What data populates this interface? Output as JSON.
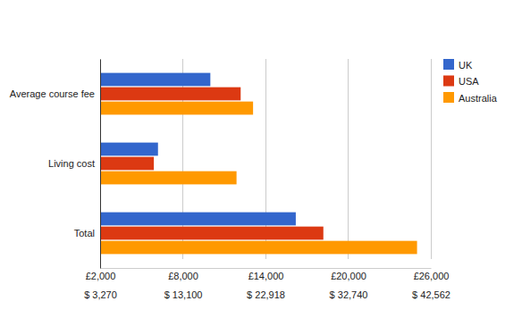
{
  "chart_data": {
    "type": "bar",
    "orientation": "horizontal",
    "categories": [
      "Average course fee",
      "Living cost",
      "Total"
    ],
    "series": [
      {
        "name": "UK",
        "color": "#3366cc",
        "values": [
          10000,
          6200,
          16200
        ]
      },
      {
        "name": "USA",
        "color": "#dc3912",
        "values": [
          12200,
          5900,
          18200
        ]
      },
      {
        "name": "Australia",
        "color": "#ff9900",
        "values": [
          13100,
          11900,
          25000
        ]
      }
    ],
    "xlim": [
      2000,
      26000
    ],
    "xticks": [
      {
        "value": 2000,
        "label": "£2,000"
      },
      {
        "value": 8000,
        "label": "£8,000"
      },
      {
        "value": 14000,
        "label": "£14,000"
      },
      {
        "value": 20000,
        "label": "£20,000"
      },
      {
        "value": 26000,
        "label": "£26,000"
      }
    ],
    "x2lim": [
      3270,
      42562
    ],
    "x2ticks": [
      {
        "value": 3270,
        "label": "$ 3,270"
      },
      {
        "value": 13100,
        "label": "$ 13,100"
      },
      {
        "value": 22918,
        "label": "$ 22,918"
      },
      {
        "value": 32740,
        "label": "$ 32,740"
      },
      {
        "value": 42562,
        "label": "$ 42,562"
      }
    ],
    "grid": true,
    "legend": "right"
  }
}
